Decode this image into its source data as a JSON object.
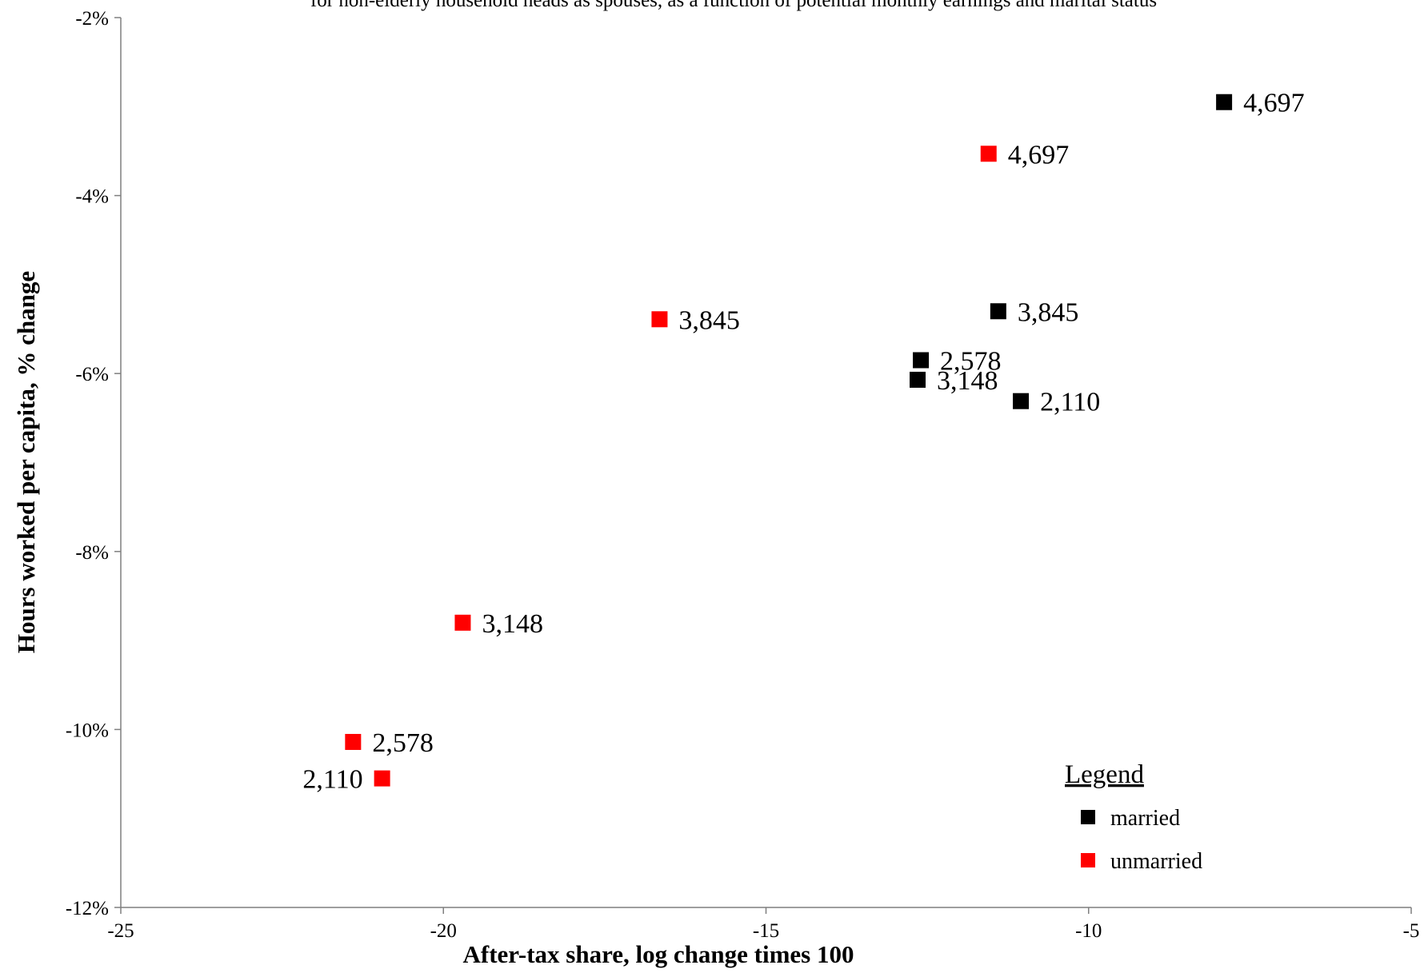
{
  "chart_data": {
    "type": "scatter",
    "title": "for non-elderly household heads as spouses, as a function of potential monthly earnings and marital status",
    "xlabel": "After-tax share, log change times 100",
    "ylabel": "Hours worked per capita, % change",
    "xlim": [
      -25,
      -5
    ],
    "ylim": [
      -12,
      -2
    ],
    "xticks": [
      -25,
      -20,
      -15,
      -10,
      -5
    ],
    "yticks": [
      -12,
      -10,
      -8,
      -6,
      -4,
      -2
    ],
    "y_unit": "%",
    "grid": false,
    "legend": {
      "title": "Legend",
      "position": "bottom-right",
      "entries": [
        {
          "name": "married",
          "color": "#000000"
        },
        {
          "name": "unmarried",
          "color": "#ff0000"
        }
      ]
    },
    "series": [
      {
        "name": "married",
        "color": "#000000",
        "points": [
          {
            "x": -7.9,
            "y": -2.95,
            "label": "4,697"
          },
          {
            "x": -11.4,
            "y": -5.3,
            "label": "3,845"
          },
          {
            "x": -12.6,
            "y": -5.85,
            "label": "2,578"
          },
          {
            "x": -12.65,
            "y": -6.07,
            "label": "3,148"
          },
          {
            "x": -11.05,
            "y": -6.31,
            "label": "2,110"
          }
        ]
      },
      {
        "name": "unmarried",
        "color": "#ff0000",
        "points": [
          {
            "x": -11.55,
            "y": -3.53,
            "label": "4,697"
          },
          {
            "x": -16.65,
            "y": -5.39,
            "label": "3,845"
          },
          {
            "x": -19.7,
            "y": -8.8,
            "label": "3,148"
          },
          {
            "x": -21.4,
            "y": -10.14,
            "label": "2,578"
          },
          {
            "x": -20.95,
            "y": -10.55,
            "label": "2,110"
          }
        ]
      }
    ]
  }
}
